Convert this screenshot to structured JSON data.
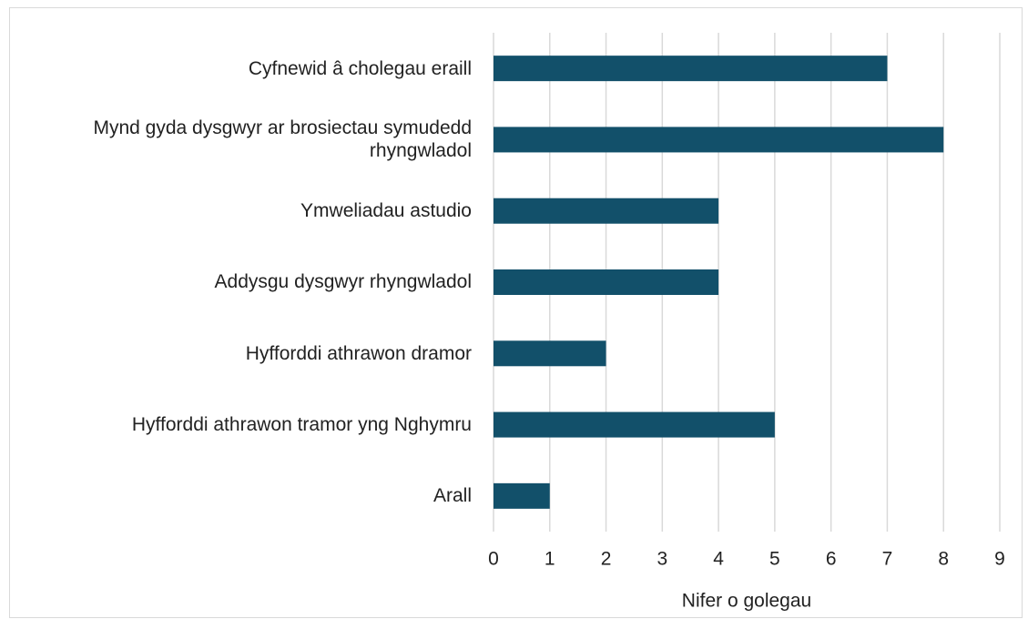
{
  "chart_data": {
    "type": "bar",
    "orientation": "horizontal",
    "categories": [
      "Cyfnewid â cholegau eraill",
      "Mynd gyda dysgwyr ar brosiectau symudedd rhyngwladol",
      "Ymweliadau astudio",
      "Addysgu dysgwyr rhyngwladol",
      "Hyfforddi athrawon dramor",
      "Hyfforddi athrawon tramor yng Nghymru",
      "Arall"
    ],
    "values": [
      7,
      8,
      4,
      4,
      2,
      5,
      1
    ],
    "color": "#12506a",
    "xlabel": "Nifer o golegau",
    "xlim": [
      0,
      9
    ],
    "xticks": [
      0,
      1,
      2,
      3,
      4,
      5,
      6,
      7,
      8,
      9
    ],
    "grid": true
  }
}
